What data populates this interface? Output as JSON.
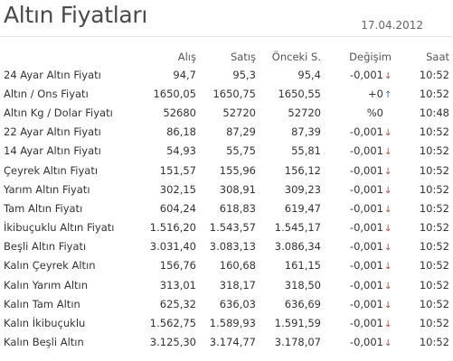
{
  "header": {
    "title": "Altın Fiyatları",
    "date": "17.04.2012"
  },
  "table": {
    "columns": {
      "buy": "Alış",
      "sell": "Satış",
      "prev": "Önceki S.",
      "change": "Değişim",
      "time": "Saat"
    },
    "rows": [
      {
        "name": "24 Ayar Altın Fiyatı",
        "buy": "94,7",
        "sell": "95,3",
        "prev": "95,4",
        "change": "-0,001",
        "dir": "down",
        "time": "10:52"
      },
      {
        "name": "Altın / Ons Fiyatı",
        "buy": "1650,05",
        "sell": "1650,75",
        "prev": "1650,55",
        "change": "+0",
        "dir": "up",
        "time": "10:52"
      },
      {
        "name": "Altın Kg / Dolar Fiyatı",
        "buy": "52680",
        "sell": "52720",
        "prev": "52720",
        "change": "%0",
        "dir": "none",
        "time": "10:48"
      },
      {
        "name": "22 Ayar Altın Fiyatı",
        "buy": "86,18",
        "sell": "87,29",
        "prev": "87,39",
        "change": "-0,001",
        "dir": "down",
        "time": "10:52"
      },
      {
        "name": "14 Ayar Altın Fiyatı",
        "buy": "54,93",
        "sell": "55,75",
        "prev": "55,81",
        "change": "-0,001",
        "dir": "down",
        "time": "10:52"
      },
      {
        "name": "Çeyrek Altın Fiyatı",
        "buy": "151,57",
        "sell": "155,96",
        "prev": "156,12",
        "change": "-0,001",
        "dir": "down",
        "time": "10:52"
      },
      {
        "name": "Yarım Altın Fiyatı",
        "buy": "302,15",
        "sell": "308,91",
        "prev": "309,23",
        "change": "-0,001",
        "dir": "down",
        "time": "10:52"
      },
      {
        "name": "Tam Altın Fiyatı",
        "buy": "604,24",
        "sell": "618,83",
        "prev": "619,47",
        "change": "-0,001",
        "dir": "down",
        "time": "10:52"
      },
      {
        "name": "İkibuçuklu Altın Fiyatı",
        "buy": "1.516,20",
        "sell": "1.543,57",
        "prev": "1.545,17",
        "change": "-0,001",
        "dir": "down",
        "time": "10:52"
      },
      {
        "name": "Beşli Altın Fiyatı",
        "buy": "3.031,40",
        "sell": "3.083,13",
        "prev": "3.086,34",
        "change": "-0,001",
        "dir": "down",
        "time": "10:52"
      },
      {
        "name": "Kalın Çeyrek Altın",
        "buy": "156,76",
        "sell": "160,68",
        "prev": "161,15",
        "change": "-0,001",
        "dir": "down",
        "time": "10:52"
      },
      {
        "name": "Kalın Yarım Altın",
        "buy": "313,01",
        "sell": "318,17",
        "prev": "318,50",
        "change": "-0,001",
        "dir": "down",
        "time": "10:52"
      },
      {
        "name": "Kalın Tam Altın",
        "buy": "625,32",
        "sell": "636,03",
        "prev": "636,69",
        "change": "-0,001",
        "dir": "down",
        "time": "10:52"
      },
      {
        "name": "Kalın İkibuçuklu",
        "buy": "1.562,75",
        "sell": "1.589,93",
        "prev": "1.591,59",
        "change": "-0,001",
        "dir": "down",
        "time": "10:52"
      },
      {
        "name": "Kalın Beşli Altın",
        "buy": "3.125,30",
        "sell": "3.174,77",
        "prev": "3.178,07",
        "change": "-0,001",
        "dir": "down",
        "time": "10:52"
      }
    ]
  },
  "colors": {
    "down": "#d23b2f",
    "up": "#2f6fd2"
  },
  "icons": {
    "down": "arrow-down-icon",
    "up": "arrow-up-icon"
  }
}
